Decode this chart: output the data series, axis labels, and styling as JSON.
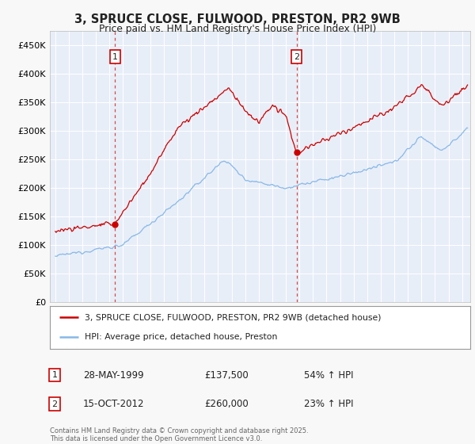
{
  "title_line1": "3, SPRUCE CLOSE, FULWOOD, PRESTON, PR2 9WB",
  "title_line2": "Price paid vs. HM Land Registry's House Price Index (HPI)",
  "fig_bg_color": "#f8f8f8",
  "plot_bg_color": "#e8eef8",
  "red_color": "#cc0000",
  "blue_color": "#88b8e8",
  "ylim": [
    0,
    475000
  ],
  "yticks": [
    0,
    50000,
    100000,
    150000,
    200000,
    250000,
    300000,
    350000,
    400000,
    450000
  ],
  "ytick_labels": [
    "£0",
    "£50K",
    "£100K",
    "£150K",
    "£200K",
    "£250K",
    "£300K",
    "£350K",
    "£400K",
    "£450K"
  ],
  "xlim_start": 1994.6,
  "xlim_end": 2025.6,
  "sale1": {
    "label": "1",
    "date_str": "28-MAY-1999",
    "date_x": 1999.4,
    "price": 137500,
    "pct": "54%",
    "direction": "↑"
  },
  "sale2": {
    "label": "2",
    "date_str": "15-OCT-2012",
    "date_x": 2012.8,
    "price": 260000,
    "pct": "23%",
    "direction": "↑"
  },
  "legend_label_red": "3, SPRUCE CLOSE, FULWOOD, PRESTON, PR2 9WB (detached house)",
  "legend_label_blue": "HPI: Average price, detached house, Preston",
  "footnote": "Contains HM Land Registry data © Crown copyright and database right 2025.\nThis data is licensed under the Open Government Licence v3.0."
}
